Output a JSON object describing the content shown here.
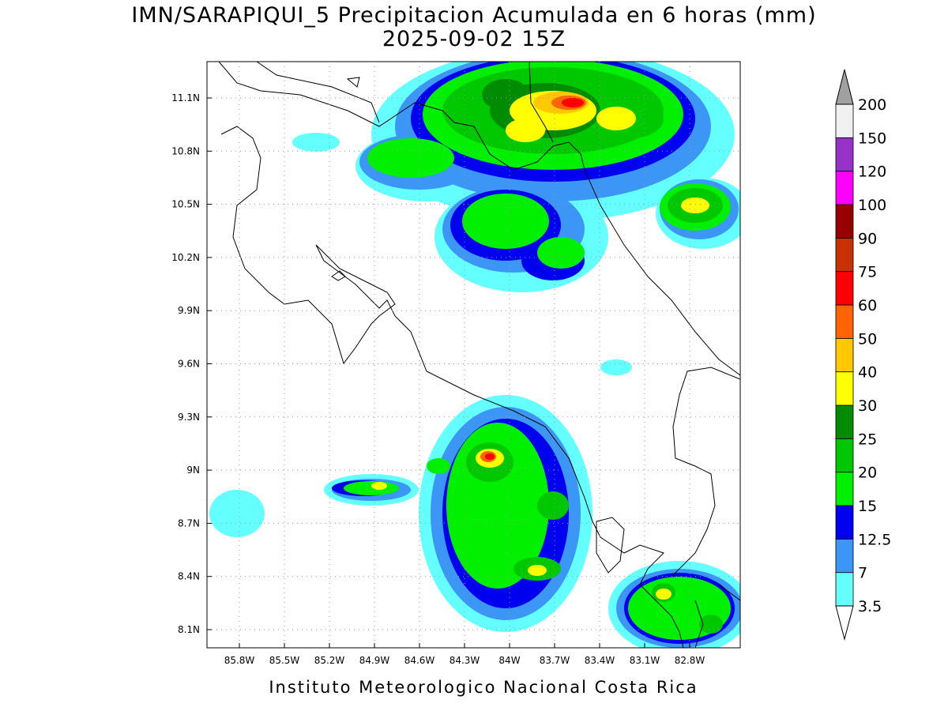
{
  "title": [
    "IMN/SARAPIQUI_5 Precipitacion Acumulada en 6 horas (mm)",
    "2025-09-02 15Z"
  ],
  "lon_labels": [
    "85.8W",
    "85.5W",
    "85.2W",
    "84.9W",
    "84.6W",
    "84.3W",
    "84W",
    "83.7W",
    "83.4W",
    "83.1W",
    "82.8W"
  ],
  "lat_labels": [
    "11.1N",
    "10.8N",
    "10.5N",
    "10.2N",
    "9.9N",
    "9.6N",
    "9.3N",
    "9N",
    "8.7N",
    "8.4N",
    "8.1N"
  ],
  "colorbar": {
    "labels": [
      "3.5",
      "7",
      "12.5",
      "15",
      "20",
      "25",
      "30",
      "40",
      "50",
      "60",
      "75",
      "90",
      "100",
      "120",
      "150",
      "200"
    ],
    "colors": [
      "#64ffff",
      "#3c96f5",
      "#0000f0",
      "#00f000",
      "#00c800",
      "#008c00",
      "#ffff00",
      "#ffc800",
      "#ff6400",
      "#ff0000",
      "#c83200",
      "#960000",
      "#ff00ff",
      "#9632c8",
      "#f0f0f0"
    ],
    "over_color": "#a0a0a0",
    "under_color": "#ffffff"
  },
  "footer": "Instituto Meteorologico Nacional Costa Rica"
}
